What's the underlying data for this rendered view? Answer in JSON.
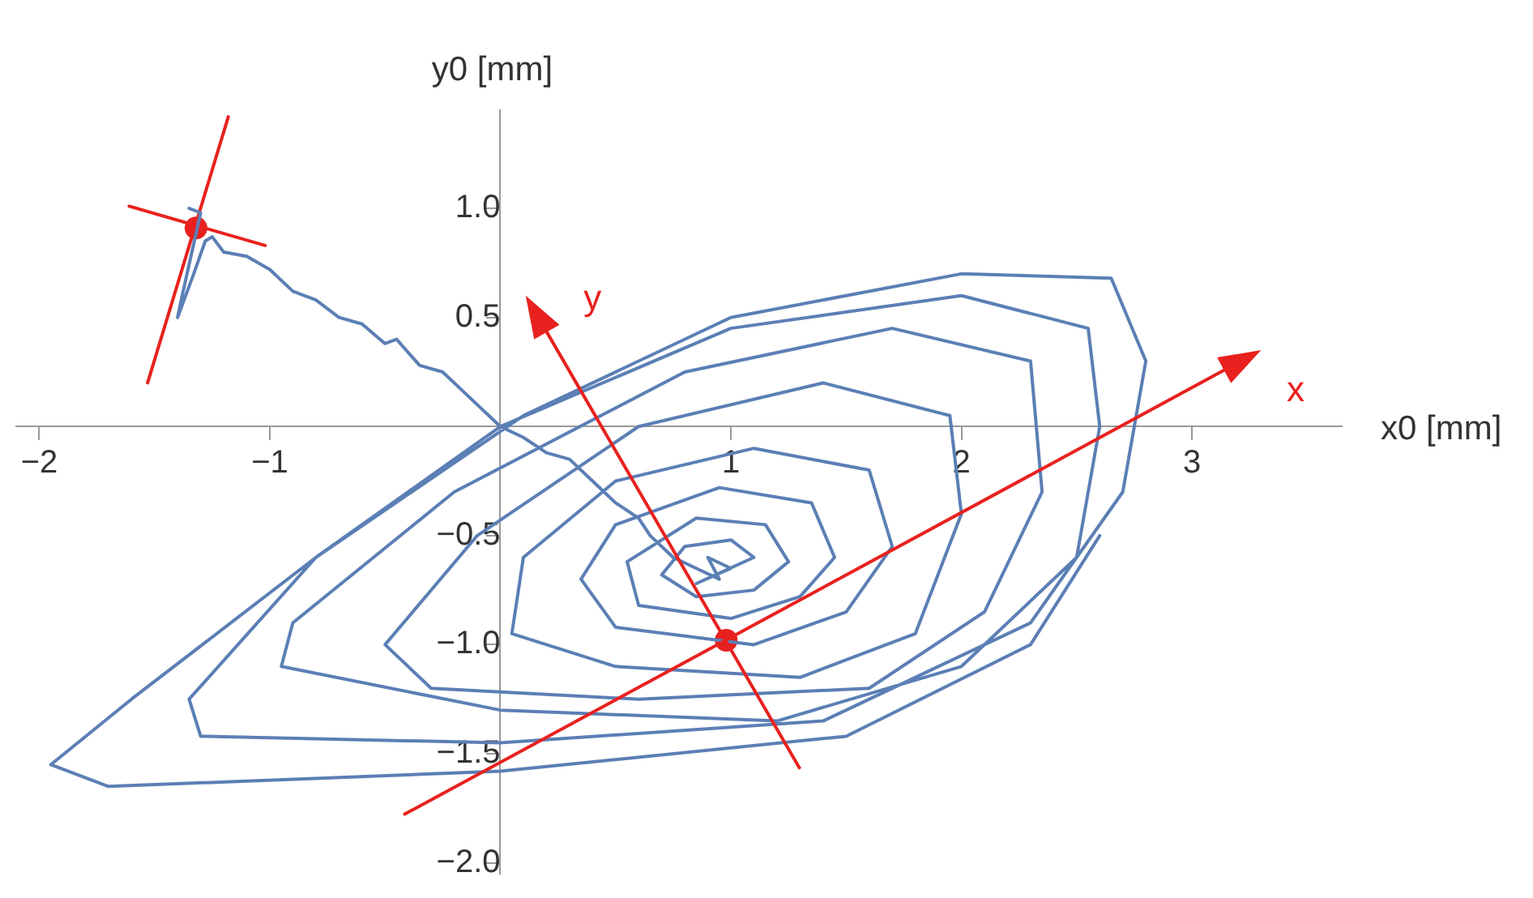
{
  "chart_data": {
    "type": "line",
    "xlabel": "x0 [mm]",
    "ylabel": "y0 [mm]",
    "xlim": [
      -2.1,
      3.65
    ],
    "ylim": [
      -2.05,
      1.45
    ],
    "annotations": [
      "x",
      "y"
    ],
    "xticks": [
      {
        "value": -2,
        "label": "−2"
      },
      {
        "value": -1,
        "label": "−1"
      },
      1,
      2,
      3
    ],
    "yticks": [
      {
        "value": -2,
        "label": "−2.0"
      },
      {
        "value": -1.5,
        "label": "−1.5"
      },
      {
        "value": -1,
        "label": "−1.0"
      },
      {
        "value": -0.5,
        "label": "−0.5"
      },
      {
        "value": 0.5,
        "label": "0.5"
      },
      {
        "value": 1,
        "label": "1.0"
      }
    ],
    "grid": false,
    "legend": false,
    "marker": "none",
    "series": [
      {
        "color": "#5b7fb5",
        "x": [
          -1.35,
          -1.3,
          -1.38,
          -1.4,
          -1.33,
          -1.28,
          -1.25,
          -1.2,
          -1.1,
          -1.0,
          -0.9,
          -0.8,
          -0.7,
          -0.6,
          -0.5,
          -0.45,
          -0.35,
          -0.25,
          -0.15,
          -0.05,
          0.0,
          0.1,
          0.2,
          0.3,
          0.4,
          0.5,
          0.6,
          0.65,
          0.75,
          0.85,
          0.95,
          0.9,
          1.0,
          0.85,
          1.1,
          1.0,
          0.8,
          0.7,
          0.85,
          1.1,
          1.25,
          1.15,
          0.85,
          0.55,
          0.6,
          1.0,
          1.3,
          1.45,
          1.35,
          0.95,
          0.5,
          0.35,
          0.5,
          1.1,
          1.5,
          1.7,
          1.6,
          1.1,
          0.5,
          0.1,
          0.05,
          0.5,
          1.3,
          1.8,
          2.0,
          1.95,
          1.4,
          0.6,
          -0.1,
          -0.5,
          -0.3,
          0.6,
          1.6,
          2.1,
          2.35,
          2.3,
          1.7,
          0.8,
          -0.2,
          -0.9,
          -0.95,
          0.0,
          1.2,
          2.0,
          2.5,
          2.6,
          2.55,
          2.0,
          1.0,
          0.0,
          -0.8,
          -1.35,
          -1.3,
          0.0,
          1.4,
          2.3,
          2.7,
          2.8,
          2.65,
          2.0,
          1.0,
          0.1,
          -0.8,
          -1.6,
          -1.95,
          -1.7,
          0.0,
          1.5,
          2.3,
          2.6
        ],
        "values": [
          1.0,
          0.98,
          0.6,
          0.5,
          0.7,
          0.85,
          0.87,
          0.8,
          0.78,
          0.72,
          0.62,
          0.58,
          0.5,
          0.47,
          0.38,
          0.4,
          0.28,
          0.25,
          0.15,
          0.05,
          0.0,
          -0.05,
          -0.12,
          -0.15,
          -0.25,
          -0.35,
          -0.42,
          -0.5,
          -0.6,
          -0.65,
          -0.7,
          -0.6,
          -0.65,
          -0.72,
          -0.6,
          -0.52,
          -0.55,
          -0.68,
          -0.78,
          -0.75,
          -0.62,
          -0.45,
          -0.42,
          -0.62,
          -0.82,
          -0.88,
          -0.78,
          -0.6,
          -0.35,
          -0.28,
          -0.45,
          -0.7,
          -0.92,
          -1.0,
          -0.85,
          -0.55,
          -0.2,
          -0.1,
          -0.25,
          -0.6,
          -0.95,
          -1.1,
          -1.15,
          -0.95,
          -0.4,
          0.05,
          0.2,
          0.0,
          -0.5,
          -1.0,
          -1.2,
          -1.25,
          -1.2,
          -0.85,
          -0.3,
          0.3,
          0.45,
          0.25,
          -0.3,
          -0.9,
          -1.1,
          -1.3,
          -1.35,
          -1.1,
          -0.6,
          0.0,
          0.45,
          0.6,
          0.45,
          0.0,
          -0.6,
          -1.25,
          -1.42,
          -1.45,
          -1.35,
          -0.9,
          -0.3,
          0.3,
          0.68,
          0.7,
          0.5,
          0.05,
          -0.6,
          -1.25,
          -1.55,
          -1.65,
          -1.58,
          -1.42,
          -1.0,
          -0.5
        ]
      },
      {
        "color": "#e8211e",
        "x": [
          -1.53,
          -1.18
        ],
        "values": [
          0.2,
          1.42
        ]
      },
      {
        "color": "#e8211e",
        "x": [
          -1.61,
          -1.02
        ],
        "values": [
          1.01,
          0.83
        ]
      },
      {
        "type": "scatter",
        "marker": "circle",
        "color": "#e8211e",
        "x": [
          -1.32,
          0.98
        ],
        "values": [
          0.91,
          -0.98
        ]
      }
    ]
  }
}
